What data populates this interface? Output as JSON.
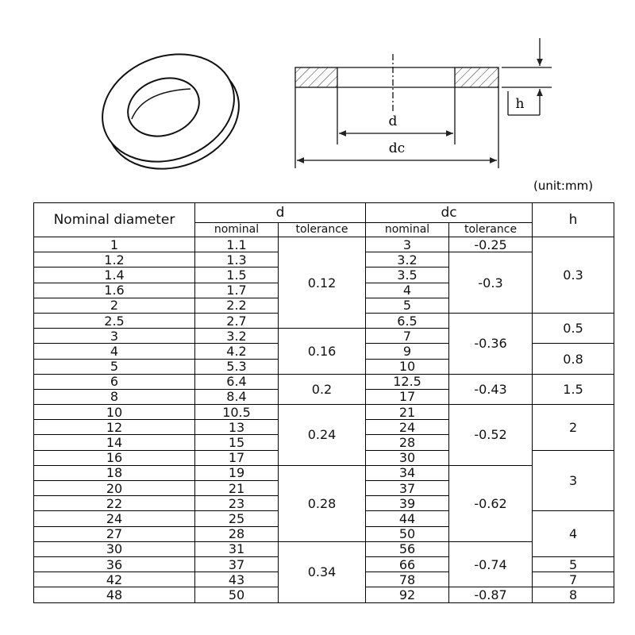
{
  "diagram": {
    "d": "d",
    "dc": "dc",
    "h": "h",
    "unit": "(unit:mm)"
  },
  "table": {
    "header": {
      "nominal_diameter": "Nominal diameter",
      "d": "d",
      "dc": "dc",
      "h": "h",
      "d_nominal": "nominal",
      "d_tolerance": "tolerance",
      "dc_nominal": "nominal",
      "dc_tolerance": "tolerance"
    },
    "rows": [
      [
        "1",
        "1.1",
        "3"
      ],
      [
        "1.2",
        "1.3",
        "3.2"
      ],
      [
        "1.4",
        "1.5",
        "3.5"
      ],
      [
        "1.6",
        "1.7",
        "4"
      ],
      [
        "2",
        "2.2",
        "5"
      ],
      [
        "2.5",
        "2.7",
        "6.5"
      ],
      [
        "3",
        "3.2",
        "7"
      ],
      [
        "4",
        "4.2",
        "9"
      ],
      [
        "5",
        "5.3",
        "10"
      ],
      [
        "6",
        "6.4",
        "12.5"
      ],
      [
        "8",
        "8.4",
        "17"
      ],
      [
        "10",
        "10.5",
        "21"
      ],
      [
        "12",
        "13",
        "24"
      ],
      [
        "14",
        "15",
        "28"
      ],
      [
        "16",
        "17",
        "30"
      ],
      [
        "18",
        "19",
        "34"
      ],
      [
        "20",
        "21",
        "37"
      ],
      [
        "22",
        "23",
        "39"
      ],
      [
        "24",
        "25",
        "44"
      ],
      [
        "27",
        "28",
        "50"
      ],
      [
        "30",
        "31",
        "56"
      ],
      [
        "36",
        "37",
        "66"
      ],
      [
        "42",
        "43",
        "78"
      ],
      [
        "48",
        "50",
        "92"
      ]
    ],
    "d_tolerance": [
      "0.12",
      "0.16",
      "0.2",
      "0.24",
      "0.28",
      "0.34"
    ],
    "dc_tolerance": [
      "-0.25",
      "-0.3",
      "-0.36",
      "-0.43",
      "-0.52",
      "-0.62",
      "-0.74",
      "-0.87"
    ],
    "h": [
      "0.3",
      "0.5",
      "0.8",
      "1.5",
      "2",
      "3",
      "4",
      "5",
      "7",
      "8"
    ]
  }
}
